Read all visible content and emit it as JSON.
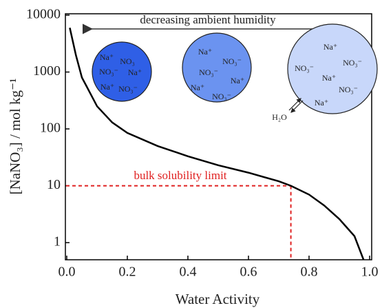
{
  "chart_data": {
    "type": "line",
    "x_label": "Water Activity",
    "y_label": "[NaNO₃] / mol kg⁻¹",
    "log_y": true,
    "xlim": [
      0,
      1.0
    ],
    "ylim": [
      0.5,
      10000
    ],
    "xticks": [
      {
        "value": 0,
        "label": "0.0"
      },
      0.2,
      0.4,
      0.6,
      0.8,
      {
        "value": 1,
        "label": "1.0"
      }
    ],
    "yticks": [
      1,
      10,
      100,
      1000,
      10000
    ],
    "x": [
      0.01,
      0.03,
      0.05,
      0.08,
      0.1,
      0.15,
      0.2,
      0.3,
      0.4,
      0.5,
      0.6,
      0.7,
      0.74,
      0.8,
      0.85,
      0.9,
      0.95,
      0.98
    ],
    "series": [
      {
        "color": "#000000",
        "values": [
          6000,
          2000,
          800,
          400,
          250,
          130,
          85,
          50,
          33,
          23,
          17,
          12,
          10,
          7,
          4.5,
          2.6,
          1.3,
          0.5
        ]
      }
    ],
    "solubility_limit": {
      "x": 0.74,
      "y": 10,
      "label": "bulk solubility limit",
      "color": "#e02020"
    },
    "arrow_label": "decreasing ambient humidity",
    "particles": [
      {
        "color": "#2f5fe6",
        "ions": [
          "Na⁺",
          "NO₃",
          "NO₃⁻",
          "Na⁺",
          "Na⁺",
          "NO₃⁻"
        ]
      },
      {
        "color": "#6b93f0",
        "ions": [
          "Na⁺",
          "NO₃⁻",
          "NO₃⁻",
          "Na⁺",
          "Na⁺",
          "NO₃⁻"
        ]
      },
      {
        "color": "#c8d7fa",
        "ions": [
          "Na⁺",
          "NO₃⁻",
          "NO₃⁻",
          "Na⁺",
          "NO₃⁻",
          "Na⁺"
        ],
        "water": "H₂O"
      }
    ]
  }
}
